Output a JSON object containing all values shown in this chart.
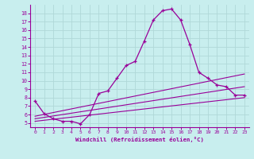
{
  "xlabel": "Windchill (Refroidissement éolien,°C)",
  "background_color": "#c8eeee",
  "grid_color": "#b0d8d8",
  "line_color": "#990099",
  "xlim": [
    -0.5,
    23.5
  ],
  "ylim": [
    4.5,
    19.0
  ],
  "xticks": [
    0,
    1,
    2,
    3,
    4,
    5,
    6,
    7,
    8,
    9,
    10,
    11,
    12,
    13,
    14,
    15,
    16,
    17,
    18,
    19,
    20,
    21,
    22,
    23
  ],
  "yticks": [
    5,
    6,
    7,
    8,
    9,
    10,
    11,
    12,
    13,
    14,
    15,
    16,
    17,
    18
  ],
  "main_x": [
    0,
    1,
    2,
    3,
    4,
    5,
    6,
    7,
    8,
    9,
    10,
    11,
    12,
    13,
    14,
    15,
    16,
    17,
    18,
    19,
    20,
    21,
    22,
    23
  ],
  "main_y": [
    7.6,
    6.1,
    5.5,
    5.2,
    5.2,
    4.9,
    6.0,
    8.5,
    8.8,
    10.3,
    11.8,
    12.3,
    14.7,
    17.2,
    18.3,
    18.5,
    17.2,
    14.3,
    11.0,
    10.3,
    9.5,
    9.3,
    8.3,
    8.3
  ],
  "line2_x": [
    0,
    23
  ],
  "line2_y": [
    5.8,
    10.8
  ],
  "line3_x": [
    0,
    23
  ],
  "line3_y": [
    5.5,
    9.3
  ],
  "line4_x": [
    0,
    23
  ],
  "line4_y": [
    5.2,
    8.0
  ]
}
